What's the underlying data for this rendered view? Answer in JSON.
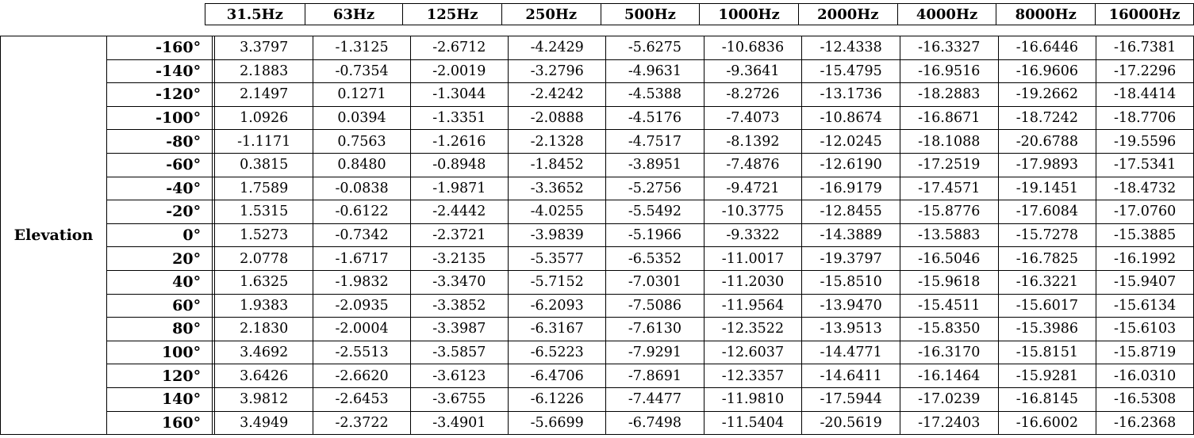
{
  "group_label": "Elevation",
  "frequencies": [
    "31.5Hz",
    "63Hz",
    "125Hz",
    "250Hz",
    "500Hz",
    "1000Hz",
    "2000Hz",
    "4000Hz",
    "8000Hz",
    "16000Hz"
  ],
  "rows": [
    {
      "label": "-160°",
      "values": [
        "3.3797",
        "-1.3125",
        "-2.6712",
        "-4.2429",
        "-5.6275",
        "-10.6836",
        "-12.4338",
        "-16.3327",
        "-16.6446",
        "-16.7381"
      ]
    },
    {
      "label": "-140°",
      "values": [
        "2.1883",
        "-0.7354",
        "-2.0019",
        "-3.2796",
        "-4.9631",
        "-9.3641",
        "-15.4795",
        "-16.9516",
        "-16.9606",
        "-17.2296"
      ]
    },
    {
      "label": "-120°",
      "values": [
        "2.1497",
        "0.1271",
        "-1.3044",
        "-2.4242",
        "-4.5388",
        "-8.2726",
        "-13.1736",
        "-18.2883",
        "-19.2662",
        "-18.4414"
      ]
    },
    {
      "label": "-100°",
      "values": [
        "1.0926",
        "0.0394",
        "-1.3351",
        "-2.0888",
        "-4.5176",
        "-7.4073",
        "-10.8674",
        "-16.8671",
        "-18.7242",
        "-18.7706"
      ]
    },
    {
      "label": "-80°",
      "values": [
        "-1.1171",
        "0.7563",
        "-1.2616",
        "-2.1328",
        "-4.7517",
        "-8.1392",
        "-12.0245",
        "-18.1088",
        "-20.6788",
        "-19.5596"
      ]
    },
    {
      "label": "-60°",
      "values": [
        "0.3815",
        "0.8480",
        "-0.8948",
        "-1.8452",
        "-3.8951",
        "-7.4876",
        "-12.6190",
        "-17.2519",
        "-17.9893",
        "-17.5341"
      ]
    },
    {
      "label": "-40°",
      "values": [
        "1.7589",
        "-0.0838",
        "-1.9871",
        "-3.3652",
        "-5.2756",
        "-9.4721",
        "-16.9179",
        "-17.4571",
        "-19.1451",
        "-18.4732"
      ]
    },
    {
      "label": "-20°",
      "values": [
        "1.5315",
        "-0.6122",
        "-2.4442",
        "-4.0255",
        "-5.5492",
        "-10.3775",
        "-12.8455",
        "-15.8776",
        "-17.6084",
        "-17.0760"
      ]
    },
    {
      "label": "0°",
      "values": [
        "1.5273",
        "-0.7342",
        "-2.3721",
        "-3.9839",
        "-5.1966",
        "-9.3322",
        "-14.3889",
        "-13.5883",
        "-15.7278",
        "-15.3885"
      ]
    },
    {
      "label": "20°",
      "values": [
        "2.0778",
        "-1.6717",
        "-3.2135",
        "-5.3577",
        "-6.5352",
        "-11.0017",
        "-19.3797",
        "-16.5046",
        "-16.7825",
        "-16.1992"
      ]
    },
    {
      "label": "40°",
      "values": [
        "1.6325",
        "-1.9832",
        "-3.3470",
        "-5.7152",
        "-7.0301",
        "-11.2030",
        "-15.8510",
        "-15.9618",
        "-16.3221",
        "-15.9407"
      ]
    },
    {
      "label": "60°",
      "values": [
        "1.9383",
        "-2.0935",
        "-3.3852",
        "-6.2093",
        "-7.5086",
        "-11.9564",
        "-13.9470",
        "-15.4511",
        "-15.6017",
        "-15.6134"
      ]
    },
    {
      "label": "80°",
      "values": [
        "2.1830",
        "-2.0004",
        "-3.3987",
        "-6.3167",
        "-7.6130",
        "-12.3522",
        "-13.9513",
        "-15.8350",
        "-15.3986",
        "-15.6103"
      ]
    },
    {
      "label": "100°",
      "values": [
        "3.4692",
        "-2.5513",
        "-3.5857",
        "-6.5223",
        "-7.9291",
        "-12.6037",
        "-14.4771",
        "-16.3170",
        "-15.8151",
        "-15.8719"
      ]
    },
    {
      "label": "120°",
      "values": [
        "3.6426",
        "-2.6620",
        "-3.6123",
        "-6.4706",
        "-7.8691",
        "-12.3357",
        "-14.6411",
        "-16.1464",
        "-15.9281",
        "-16.0310"
      ]
    },
    {
      "label": "140°",
      "values": [
        "3.9812",
        "-2.6453",
        "-3.6755",
        "-6.1226",
        "-7.4477",
        "-11.9810",
        "-17.5944",
        "-17.0239",
        "-16.8145",
        "-16.5308"
      ]
    },
    {
      "label": "160°",
      "values": [
        "3.4949",
        "-2.3722",
        "-3.4901",
        "-5.6699",
        "-6.7498",
        "-11.5404",
        "-20.5619",
        "-17.2403",
        "-16.6002",
        "-16.2368"
      ]
    }
  ]
}
